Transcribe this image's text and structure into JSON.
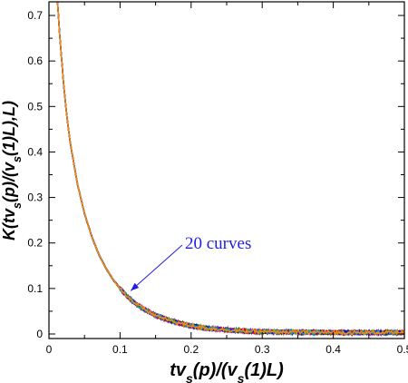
{
  "chart_data": {
    "type": "line",
    "title": "",
    "xlabel": {
      "parts": [
        "tv",
        "s",
        "(p)/(v",
        "s",
        "(1)L)"
      ],
      "roles": [
        "n",
        "sub",
        "n",
        "sub",
        "n"
      ]
    },
    "ylabel": {
      "parts": [
        "K(tv",
        "s",
        "(p)/(v",
        "s",
        "(1)L),L)"
      ],
      "roles": [
        "n",
        "sub",
        "n",
        "sub",
        "n"
      ]
    },
    "xlim": [
      0,
      0.5
    ],
    "ylim": [
      -0.01,
      0.73
    ],
    "xticks": [
      0,
      0.1,
      0.2,
      0.3,
      0.4,
      0.5
    ],
    "xtick_labels": [
      "0",
      "0.1",
      "0.2",
      "0.3",
      "0.4",
      "0.5"
    ],
    "yticks": [
      0,
      0.1,
      0.2,
      0.3,
      0.4,
      0.5,
      0.6,
      0.7
    ],
    "ytick_labels": [
      "0",
      "0.1",
      "0.2",
      "0.3",
      "0.4",
      "0.5",
      "0.6",
      "0.7"
    ],
    "grid": false,
    "legend": "none",
    "num_curves": 20,
    "curve_colors": [
      "#000000",
      "#ff0000",
      "#9900cc",
      "#0000ff",
      "#00aaaa",
      "#ff8800",
      "#2a9d2a"
    ],
    "x": [
      0.012,
      0.015,
      0.02,
      0.025,
      0.03,
      0.04,
      0.05,
      0.06,
      0.07,
      0.08,
      0.09,
      0.1,
      0.11,
      0.12,
      0.13,
      0.14,
      0.15,
      0.16,
      0.18,
      0.2,
      0.22,
      0.25,
      0.28,
      0.3,
      0.35,
      0.4,
      0.45,
      0.5
    ],
    "y": [
      0.73,
      0.66,
      0.56,
      0.48,
      0.42,
      0.33,
      0.265,
      0.215,
      0.175,
      0.145,
      0.12,
      0.1,
      0.083,
      0.069,
      0.058,
      0.049,
      0.041,
      0.035,
      0.025,
      0.018,
      0.013,
      0.009,
      0.006,
      0.005,
      0.004,
      0.003,
      0.003,
      0.003
    ],
    "annotation": {
      "text": "20 curves",
      "arrow_tip": [
        0.115,
        0.095
      ]
    }
  }
}
